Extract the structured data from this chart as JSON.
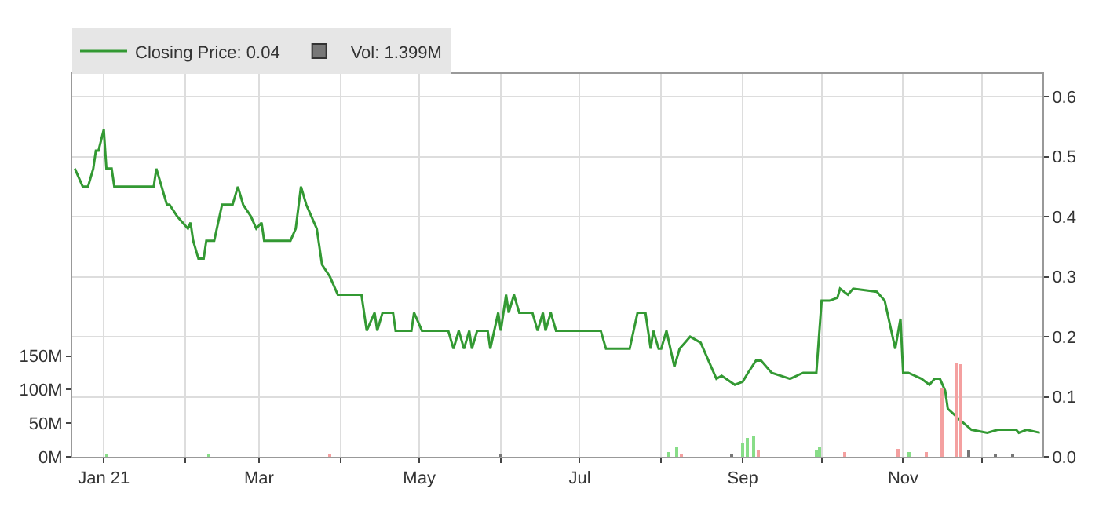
{
  "chart_data": {
    "type": "line",
    "xlim": [
      "2020-12-20",
      "2021-12-24"
    ],
    "xticks": [
      {
        "value": "2021-01-01",
        "label": "Jan 21"
      },
      {
        "value": "2021-02-01",
        "label": null
      },
      {
        "value": "2021-03-01",
        "label": "Mar"
      },
      {
        "value": "2021-04-01",
        "label": null
      },
      {
        "value": "2021-05-01",
        "label": "May"
      },
      {
        "value": "2021-06-01",
        "label": null
      },
      {
        "value": "2021-07-01",
        "label": "Jul"
      },
      {
        "value": "2021-08-01",
        "label": null
      },
      {
        "value": "2021-09-01",
        "label": "Sep"
      },
      {
        "value": "2021-10-01",
        "label": null
      },
      {
        "value": "2021-11-01",
        "label": "Nov"
      },
      {
        "value": "2021-12-01",
        "label": null
      }
    ],
    "ylim": [
      0,
      0.638
    ],
    "yticks": [
      {
        "value": 0,
        "label": "0.0"
      },
      {
        "value": 0.1,
        "label": "0.1"
      },
      {
        "value": 0.2,
        "label": "0.2"
      },
      {
        "value": 0.3,
        "label": "0.3"
      },
      {
        "value": 0.4,
        "label": "0.4"
      },
      {
        "value": 0.5,
        "label": "0.5"
      },
      {
        "value": 0.6,
        "label": "0.6"
      }
    ],
    "y2lim": [
      0,
      570000000
    ],
    "y2ticks": [
      {
        "value": 0,
        "label": "0M"
      },
      {
        "value": 50000000,
        "label": "50M"
      },
      {
        "value": 100000000,
        "label": "100M"
      },
      {
        "value": 150000000,
        "label": "150M"
      }
    ],
    "grid": true,
    "legend": "top left",
    "marker": "none",
    "line_style": "solid",
    "series": [
      {
        "name": "Closing Price: 0.04",
        "color": "#339933",
        "x": [
          "2020-12-21",
          "2020-12-24",
          "2020-12-26",
          "2020-12-28",
          "2020-12-29",
          "2020-12-30",
          "2021-01-01",
          "2021-01-02",
          "2021-01-04",
          "2021-01-05",
          "2021-01-20",
          "2021-01-21",
          "2021-01-25",
          "2021-01-26",
          "2021-01-29",
          "2021-02-02",
          "2021-02-03",
          "2021-02-04",
          "2021-02-06",
          "2021-02-08",
          "2021-02-09",
          "2021-02-12",
          "2021-02-15",
          "2021-02-19",
          "2021-02-21",
          "2021-02-23",
          "2021-02-26",
          "2021-02-28",
          "2021-03-02",
          "2021-03-03",
          "2021-03-13",
          "2021-03-15",
          "2021-03-17",
          "2021-03-19",
          "2021-03-20",
          "2021-03-23",
          "2021-03-25",
          "2021-03-28",
          "2021-03-29",
          "2021-03-31",
          "2021-04-09",
          "2021-04-11",
          "2021-04-14",
          "2021-04-15",
          "2021-04-17",
          "2021-04-21",
          "2021-04-22",
          "2021-04-28",
          "2021-04-29",
          "2021-05-02",
          "2021-05-12",
          "2021-05-14",
          "2021-05-16",
          "2021-05-18",
          "2021-05-20",
          "2021-05-21",
          "2021-05-23",
          "2021-05-27",
          "2021-05-28",
          "2021-05-31",
          "2021-06-01",
          "2021-06-03",
          "2021-06-04",
          "2021-06-06",
          "2021-06-08",
          "2021-06-13",
          "2021-06-15",
          "2021-06-17",
          "2021-06-18",
          "2021-06-20",
          "2021-06-22",
          "2021-07-09",
          "2021-07-11",
          "2021-07-20",
          "2021-07-23",
          "2021-07-26",
          "2021-07-28",
          "2021-07-29",
          "2021-07-31",
          "2021-08-01",
          "2021-08-03",
          "2021-08-06",
          "2021-08-08",
          "2021-08-10",
          "2021-08-12",
          "2021-08-16",
          "2021-08-19",
          "2021-08-22",
          "2021-08-24",
          "2021-08-29",
          "2021-09-01",
          "2021-09-03",
          "2021-09-06",
          "2021-09-08",
          "2021-09-12",
          "2021-09-19",
          "2021-09-24",
          "2021-09-29",
          "2021-10-01",
          "2021-10-04",
          "2021-10-07",
          "2021-10-08",
          "2021-10-11",
          "2021-10-13",
          "2021-10-22",
          "2021-10-25",
          "2021-10-27",
          "2021-10-29",
          "2021-10-31",
          "2021-11-01",
          "2021-11-03",
          "2021-11-08",
          "2021-11-11",
          "2021-11-13",
          "2021-11-15",
          "2021-11-17",
          "2021-11-18",
          "2021-11-23",
          "2021-11-27",
          "2021-12-03",
          "2021-12-07",
          "2021-12-14",
          "2021-12-15",
          "2021-12-18",
          "2021-12-23"
        ],
        "values": [
          0.48,
          0.45,
          0.45,
          0.48,
          0.51,
          0.51,
          0.545,
          0.48,
          0.48,
          0.45,
          0.45,
          0.48,
          0.42,
          0.42,
          0.4,
          0.38,
          0.39,
          0.36,
          0.33,
          0.33,
          0.36,
          0.36,
          0.42,
          0.42,
          0.45,
          0.42,
          0.4,
          0.38,
          0.39,
          0.36,
          0.36,
          0.38,
          0.45,
          0.42,
          0.41,
          0.38,
          0.32,
          0.3,
          0.29,
          0.27,
          0.27,
          0.21,
          0.24,
          0.21,
          0.24,
          0.24,
          0.21,
          0.21,
          0.24,
          0.21,
          0.21,
          0.18,
          0.21,
          0.18,
          0.21,
          0.18,
          0.21,
          0.21,
          0.18,
          0.24,
          0.21,
          0.27,
          0.24,
          0.27,
          0.24,
          0.24,
          0.21,
          0.24,
          0.21,
          0.24,
          0.21,
          0.21,
          0.18,
          0.18,
          0.24,
          0.24,
          0.18,
          0.21,
          0.18,
          0.18,
          0.21,
          0.15,
          0.18,
          0.19,
          0.2,
          0.19,
          0.16,
          0.13,
          0.135,
          0.12,
          0.125,
          0.14,
          0.16,
          0.16,
          0.14,
          0.13,
          0.14,
          0.14,
          0.26,
          0.26,
          0.265,
          0.28,
          0.27,
          0.28,
          0.275,
          0.26,
          0.22,
          0.18,
          0.23,
          0.14,
          0.14,
          0.13,
          0.12,
          0.13,
          0.13,
          0.11,
          0.08,
          0.06,
          0.045,
          0.04,
          0.045,
          0.045,
          0.04,
          0.045,
          0.04
        ]
      },
      {
        "name": "Vol: 1.399M",
        "type": "bar",
        "axis": "y2",
        "color": "#777777",
        "x": [
          "2021-01-02",
          "2021-02-10",
          "2021-03-28",
          "2021-04-20",
          "2021-06-01",
          "2021-07-25",
          "2021-08-04",
          "2021-08-07",
          "2021-08-09",
          "2021-08-28",
          "2021-09-01",
          "2021-09-03",
          "2021-09-05",
          "2021-09-07",
          "2021-09-29",
          "2021-09-30",
          "2021-10-10",
          "2021-10-30",
          "2021-11-03",
          "2021-11-10",
          "2021-11-16",
          "2021-11-21",
          "2021-11-23",
          "2021-11-26",
          "2021-12-06",
          "2021-12-13"
        ],
        "values": [
          5000000,
          3000000,
          5000000,
          null,
          3000000,
          null,
          8000000,
          15000000,
          5000000,
          4000000,
          22000000,
          28000000,
          30000000,
          10000000,
          10000000,
          15000000,
          6000000,
          12000000,
          8000000,
          6000000,
          103000000,
          140000000,
          138000000,
          10000000,
          5000000,
          3000000
        ],
        "colors": [
          "#88dd88",
          "#88dd88",
          "#f4a0a0",
          "#777777",
          "#777777",
          "#777777",
          "#88dd88",
          "#88dd88",
          "#f4a0a0",
          "#777777",
          "#88dd88",
          "#88dd88",
          "#88dd88",
          "#f4a0a0",
          "#88dd88",
          "#88dd88",
          "#f4a0a0",
          "#f4a0a0",
          "#88dd88",
          "#f4a0a0",
          "#f4a0a0",
          "#f4a0a0",
          "#f4a0a0",
          "#777777",
          "#777777",
          "#777777"
        ]
      }
    ]
  }
}
